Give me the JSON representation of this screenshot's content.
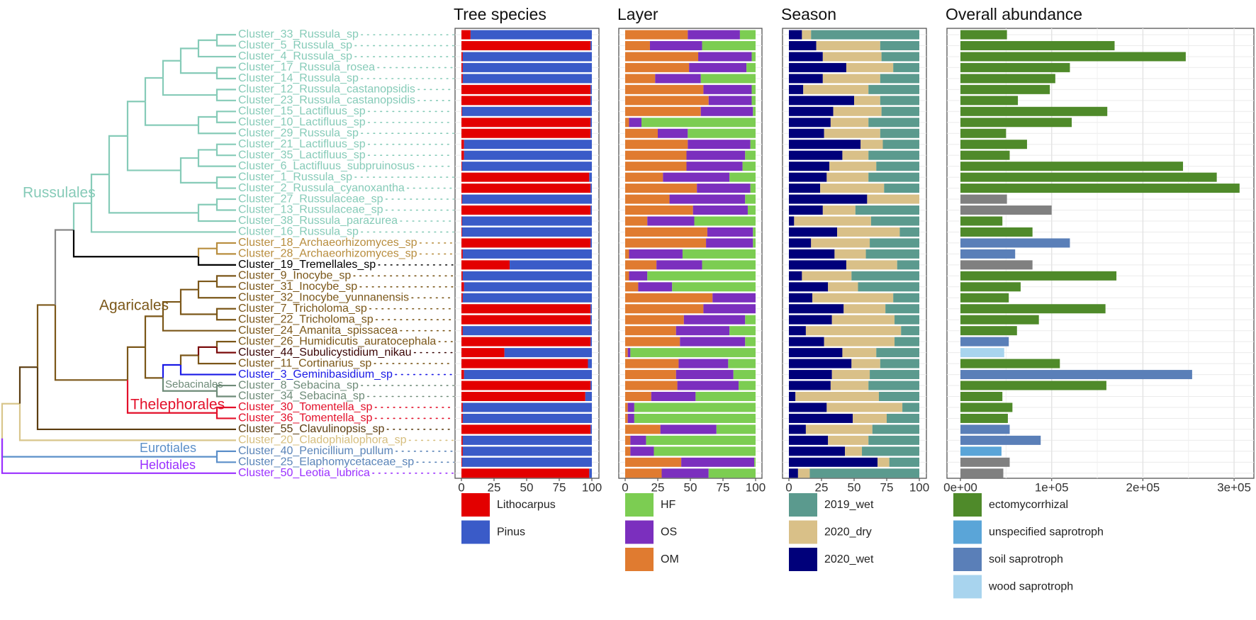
{
  "titles": {
    "tree": "Tree species",
    "layer": "Layer",
    "season": "Season",
    "abundance": "Overall abundance"
  },
  "clade_labels": [
    {
      "text": "Russulales",
      "color": "#86cbb8"
    },
    {
      "text": "Agaricales",
      "color": "#7b5719"
    },
    {
      "text": "Sebacinales",
      "color": "#6e8b78"
    },
    {
      "text": "Thelephorales",
      "color": "#e3102a"
    },
    {
      "text": "Eurotiales",
      "color": "#5b8fc9"
    },
    {
      "text": "Helotiales",
      "color": "#9b30ff"
    }
  ],
  "legends": {
    "tree": [
      {
        "label": "Lithocarpus",
        "color": "#e30000"
      },
      {
        "label": "Pinus",
        "color": "#3a5bc8"
      }
    ],
    "layer": [
      {
        "label": "HF",
        "color": "#7ccd52"
      },
      {
        "label": "OS",
        "color": "#7b2fbe"
      },
      {
        "label": "OM",
        "color": "#e07b30"
      }
    ],
    "season": [
      {
        "label": "2019_wet",
        "color": "#5b9a8e"
      },
      {
        "label": "2020_dry",
        "color": "#d9c088"
      },
      {
        "label": "2020_wet",
        "color": "#00007a"
      }
    ],
    "abundance": [
      {
        "label": "ectomycorrhizal",
        "color": "#4f8a2a"
      },
      {
        "label": "unspecified  saprotroph",
        "color": "#5aa5d8"
      },
      {
        "label": "soil  saprotroph",
        "color": "#5a7fb8"
      },
      {
        "label": "wood  saprotroph",
        "color": "#a8d4ee"
      }
    ]
  },
  "chart_data": {
    "type": "bar",
    "subtype": "stacked horizontal bars with dendrogram",
    "panels": [
      "Tree species",
      "Layer",
      "Season",
      "Overall abundance"
    ],
    "percent_axis": {
      "range": [
        0,
        100
      ],
      "ticks": [
        "0",
        "25",
        "50",
        "75",
        "100"
      ]
    },
    "abundance_axis": {
      "range": [
        0,
        320000
      ],
      "ticks": [
        0,
        100000,
        200000,
        300000
      ],
      "tick_labels": [
        "0e+00",
        "1e+05",
        "2e+05",
        "3e+05"
      ]
    },
    "tree_series": [
      "Lithocarpus",
      "Pinus"
    ],
    "layer_series": [
      "OM",
      "OS",
      "HF"
    ],
    "season_series": [
      "2020_wet",
      "2020_dry",
      "2019_wet"
    ],
    "guild_colors": {
      "ectomycorrhizal": "#4f8a2a",
      "unspecified saprotroph": "#5aa5d8",
      "soil saprotroph": "#5a7fb8",
      "wood saprotroph": "#a8d4ee",
      "NA": "#808080"
    },
    "clusters": [
      {
        "name": "Cluster_33_Russula_sp",
        "color": "#86cbb8",
        "tree": [
          7,
          93
        ],
        "layer": [
          48,
          40,
          12
        ],
        "season": [
          10,
          7,
          83
        ],
        "abundance": 51000,
        "guild": "ectomycorrhizal"
      },
      {
        "name": "Cluster_5_Russula_sp",
        "color": "#86cbb8",
        "tree": [
          99,
          1
        ],
        "layer": [
          19,
          40,
          41
        ],
        "season": [
          21,
          49,
          30
        ],
        "abundance": 169000,
        "guild": "ectomycorrhizal"
      },
      {
        "name": "Cluster_4_Russula_sp",
        "color": "#86cbb8",
        "tree": [
          1,
          99
        ],
        "layer": [
          56,
          41,
          3
        ],
        "season": [
          26,
          45,
          29
        ],
        "abundance": 247000,
        "guild": "ectomycorrhizal"
      },
      {
        "name": "Cluster_17_Russula_rosea",
        "color": "#86cbb8",
        "tree": [
          1,
          99
        ],
        "layer": [
          49,
          44,
          7
        ],
        "season": [
          44,
          36,
          20
        ],
        "abundance": 120000,
        "guild": "ectomycorrhizal"
      },
      {
        "name": "Cluster_14_Russula_sp",
        "color": "#86cbb8",
        "tree": [
          1,
          99
        ],
        "layer": [
          23,
          35,
          42
        ],
        "season": [
          26,
          44,
          30
        ],
        "abundance": 104000,
        "guild": "ectomycorrhizal"
      },
      {
        "name": "Cluster_12_Russula_castanopsidis",
        "color": "#86cbb8",
        "tree": [
          99,
          1
        ],
        "layer": [
          60,
          37,
          3
        ],
        "season": [
          11,
          50,
          39
        ],
        "abundance": 98000,
        "guild": "ectomycorrhizal"
      },
      {
        "name": "Cluster_23_Russula_castanopsidis",
        "color": "#86cbb8",
        "tree": [
          99,
          1
        ],
        "layer": [
          64,
          33,
          3
        ],
        "season": [
          50,
          20,
          30
        ],
        "abundance": 63000,
        "guild": "ectomycorrhizal"
      },
      {
        "name": "Cluster_15_Lactifluus_sp",
        "color": "#86cbb8",
        "tree": [
          0.5,
          99.5
        ],
        "layer": [
          58,
          40,
          2
        ],
        "season": [
          34,
          37,
          29
        ],
        "abundance": 161000,
        "guild": "ectomycorrhizal"
      },
      {
        "name": "Cluster_10_Lactifluus_sp",
        "color": "#86cbb8",
        "tree": [
          99,
          1
        ],
        "layer": [
          3,
          9.5,
          87.5
        ],
        "season": [
          32,
          29,
          39
        ],
        "abundance": 122000,
        "guild": "ectomycorrhizal"
      },
      {
        "name": "Cluster_29_Russula_sp",
        "color": "#86cbb8",
        "tree": [
          99,
          1
        ],
        "layer": [
          25,
          23,
          52
        ],
        "season": [
          27,
          43,
          30
        ],
        "abundance": 50000,
        "guild": "ectomycorrhizal"
      },
      {
        "name": "Cluster_21_Lactifluus_sp",
        "color": "#86cbb8",
        "tree": [
          2,
          98
        ],
        "layer": [
          48,
          48,
          4
        ],
        "season": [
          55,
          17,
          28
        ],
        "abundance": 73000,
        "guild": "ectomycorrhizal"
      },
      {
        "name": "Cluster_35_Lactifluus_sp",
        "color": "#86cbb8",
        "tree": [
          2,
          98
        ],
        "layer": [
          47,
          45,
          8
        ],
        "season": [
          41,
          20,
          39
        ],
        "abundance": 54000,
        "guild": "ectomycorrhizal"
      },
      {
        "name": "Cluster_6_Lactifluus_subpruinosus",
        "color": "#86cbb8",
        "tree": [
          0.5,
          99.5
        ],
        "layer": [
          47,
          43,
          10
        ],
        "season": [
          31,
          36,
          33
        ],
        "abundance": 244000,
        "guild": "ectomycorrhizal"
      },
      {
        "name": "Cluster_1_Russula_sp",
        "color": "#86cbb8",
        "tree": [
          98,
          2
        ],
        "layer": [
          29,
          51,
          20
        ],
        "season": [
          29,
          32,
          39
        ],
        "abundance": 281000,
        "guild": "ectomycorrhizal"
      },
      {
        "name": "Cluster_2_Russula_cyanoxantha",
        "color": "#86cbb8",
        "tree": [
          99,
          1
        ],
        "layer": [
          55,
          41,
          4
        ],
        "season": [
          24,
          49,
          27
        ],
        "abundance": 306000,
        "guild": "ectomycorrhizal"
      },
      {
        "name": "Cluster_27_Russulaceae_sp",
        "color": "#86cbb8",
        "tree": [
          0.5,
          99.5
        ],
        "layer": [
          34,
          58,
          8
        ],
        "season": [
          60,
          40,
          0
        ],
        "abundance": 51000,
        "guild": "NA"
      },
      {
        "name": "Cluster_13_Russulaceae_sp",
        "color": "#86cbb8",
        "tree": [
          99,
          1
        ],
        "layer": [
          52,
          42,
          6
        ],
        "season": [
          26,
          25,
          49
        ],
        "abundance": 100000,
        "guild": "NA"
      },
      {
        "name": "Cluster_38_Russula_parazurea",
        "color": "#86cbb8",
        "tree": [
          0.5,
          99.5
        ],
        "layer": [
          17,
          36,
          47
        ],
        "season": [
          4,
          59,
          37
        ],
        "abundance": 46000,
        "guild": "ectomycorrhizal"
      },
      {
        "name": "Cluster_16_Russula_sp",
        "color": "#86cbb8",
        "tree": [
          0.5,
          99.5
        ],
        "layer": [
          63,
          35,
          2
        ],
        "season": [
          37,
          48,
          15
        ],
        "abundance": 79000,
        "guild": "ectomycorrhizal"
      },
      {
        "name": "Cluster_18_Archaeorhizomyces_sp",
        "color": "#b88d3e",
        "tree": [
          99,
          1
        ],
        "layer": [
          62,
          36,
          2
        ],
        "season": [
          17,
          45,
          38
        ],
        "abundance": 120000,
        "guild": "soil saprotroph"
      },
      {
        "name": "Cluster_28_Archaeorhizomyces_sp",
        "color": "#b88d3e",
        "tree": [
          1,
          99
        ],
        "layer": [
          3,
          41,
          56
        ],
        "season": [
          35,
          24,
          41
        ],
        "abundance": 60000,
        "guild": "soil saprotroph"
      },
      {
        "name": "Cluster_19_Tremellales_sp",
        "color": "#000000",
        "tree": [
          37,
          63
        ],
        "layer": [
          24,
          35,
          41
        ],
        "season": [
          44,
          39,
          17
        ],
        "abundance": 79000,
        "guild": "NA"
      },
      {
        "name": "Cluster_9_Inocybe_sp",
        "color": "#7b5719",
        "tree": [
          1,
          99
        ],
        "layer": [
          3,
          14,
          83
        ],
        "season": [
          10,
          38,
          52
        ],
        "abundance": 171000,
        "guild": "ectomycorrhizal"
      },
      {
        "name": "Cluster_31_Inocybe_sp",
        "color": "#7b5719",
        "tree": [
          2,
          98
        ],
        "layer": [
          10,
          26,
          64
        ],
        "season": [
          30,
          23,
          47
        ],
        "abundance": 66000,
        "guild": "ectomycorrhizal"
      },
      {
        "name": "Cluster_32_Inocybe_yunnanensis",
        "color": "#7b5719",
        "tree": [
          1,
          99
        ],
        "layer": [
          67,
          33,
          0
        ],
        "season": [
          18,
          62,
          20
        ],
        "abundance": 53000,
        "guild": "ectomycorrhizal"
      },
      {
        "name": "Cluster_7_Tricholoma_sp",
        "color": "#7b5719",
        "tree": [
          99,
          1
        ],
        "layer": [
          60,
          40,
          0
        ],
        "season": [
          42,
          32,
          26
        ],
        "abundance": 159000,
        "guild": "ectomycorrhizal"
      },
      {
        "name": "Cluster_22_Tricholoma_sp",
        "color": "#7b5719",
        "tree": [
          99,
          1
        ],
        "layer": [
          45,
          47,
          8
        ],
        "season": [
          33,
          48,
          19
        ],
        "abundance": 86000,
        "guild": "ectomycorrhizal"
      },
      {
        "name": "Cluster_24_Amanita_spissacea",
        "color": "#7b5719",
        "tree": [
          1,
          99
        ],
        "layer": [
          39,
          41,
          20
        ],
        "season": [
          13,
          73,
          14
        ],
        "abundance": 62000,
        "guild": "ectomycorrhizal"
      },
      {
        "name": "Cluster_26_Humidicutis_auratocephala",
        "color": "#7b5719",
        "tree": [
          99,
          1
        ],
        "layer": [
          42,
          50,
          8
        ],
        "season": [
          27,
          54,
          19
        ],
        "abundance": 53000,
        "guild": "soil saprotroph"
      },
      {
        "name": "Cluster_44_Subulicystidium_nikau",
        "color": "#3a0505",
        "tree": [
          33,
          67
        ],
        "layer": [
          2,
          2,
          96
        ],
        "season": [
          41,
          26,
          33
        ],
        "abundance": 48000,
        "guild": "wood saprotroph"
      },
      {
        "name": "Cluster_11_Cortinarius_sp",
        "color": "#7b5719",
        "tree": [
          97,
          3
        ],
        "layer": [
          41,
          38,
          21
        ],
        "season": [
          48,
          22,
          30
        ],
        "abundance": 109000,
        "guild": "ectomycorrhizal"
      },
      {
        "name": "Cluster_3_Geminibasidium_sp",
        "color": "#1a1ae6",
        "tree": [
          2,
          98
        ],
        "layer": [
          39,
          44,
          17
        ],
        "season": [
          33,
          29,
          38
        ],
        "abundance": 254000,
        "guild": "soil saprotroph"
      },
      {
        "name": "Cluster_8_Sebacina_sp",
        "color": "#6e8b78",
        "tree": [
          99,
          1
        ],
        "layer": [
          40,
          47,
          13
        ],
        "season": [
          32,
          29,
          39
        ],
        "abundance": 160000,
        "guild": "ectomycorrhizal"
      },
      {
        "name": "Cluster_34_Sebacina_sp",
        "color": "#6e8b78",
        "tree": [
          95,
          5
        ],
        "layer": [
          20,
          34,
          46
        ],
        "season": [
          5,
          64,
          31
        ],
        "abundance": 46000,
        "guild": "ectomycorrhizal"
      },
      {
        "name": "Cluster_30_Tomentella_sp",
        "color": "#e3102a",
        "tree": [
          1,
          99
        ],
        "layer": [
          2,
          5,
          93
        ],
        "season": [
          29,
          58,
          13
        ],
        "abundance": 57000,
        "guild": "ectomycorrhizal"
      },
      {
        "name": "Cluster_36_Tomentella_sp",
        "color": "#e3102a",
        "tree": [
          1,
          99
        ],
        "layer": [
          2,
          5,
          93
        ],
        "season": [
          49,
          26,
          25
        ],
        "abundance": 52000,
        "guild": "ectomycorrhizal"
      },
      {
        "name": "Cluster_55_Clavulinopsis_sp",
        "color": "#5c3d10",
        "tree": [
          99,
          1
        ],
        "layer": [
          27,
          43,
          30
        ],
        "season": [
          13,
          51,
          36
        ],
        "abundance": 54000,
        "guild": "soil saprotroph"
      },
      {
        "name": "Cluster_20_Cladophialophora_sp",
        "color": "#d6be7e",
        "tree": [
          1,
          99
        ],
        "layer": [
          4,
          12,
          84
        ],
        "season": [
          30,
          31,
          39
        ],
        "abundance": 88000,
        "guild": "soil saprotroph"
      },
      {
        "name": "Cluster_40_Penicillium_pullum",
        "color": "#5a84b8",
        "tree": [
          1,
          99
        ],
        "layer": [
          4,
          18,
          78
        ],
        "season": [
          43,
          13,
          44
        ],
        "abundance": 45000,
        "guild": "unspecified saprotroph"
      },
      {
        "name": "Cluster_25_Elaphomycetaceae_sp",
        "color": "#5a84b8",
        "tree": [
          0.5,
          99.5
        ],
        "layer": [
          43,
          56,
          1
        ],
        "season": [
          68,
          9,
          23
        ],
        "abundance": 54000,
        "guild": "NA"
      },
      {
        "name": "Cluster_50_Leotia_lubrica",
        "color": "#9b30ff",
        "tree": [
          98,
          2
        ],
        "layer": [
          28,
          36,
          36
        ],
        "season": [
          7,
          9,
          84
        ],
        "abundance": 47000,
        "guild": "NA"
      }
    ]
  }
}
